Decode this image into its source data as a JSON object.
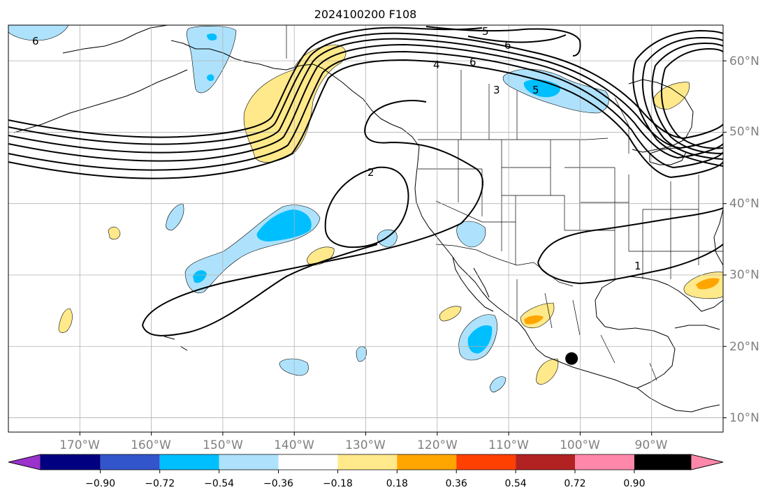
{
  "title": "2024100200 F108",
  "map": {
    "projection": "PlateCarree",
    "lon_range": [
      -180,
      -80
    ],
    "lat_range": [
      8,
      65
    ],
    "grid": true,
    "grid_lons": [
      -170,
      -160,
      -150,
      -140,
      -130,
      -120,
      -110,
      -100,
      -90,
      -80
    ],
    "grid_lats": [
      10,
      20,
      30,
      40,
      50,
      60
    ],
    "lon_tick_labels": [
      "170°W",
      "160°W",
      "150°W",
      "140°W",
      "130°W",
      "120°W",
      "110°W",
      "100°W",
      "90°W"
    ],
    "lat_tick_labels": [
      "10°N",
      "20°N",
      "30°N",
      "40°N",
      "50°N",
      "60°N"
    ],
    "marker": {
      "lon": -101.2,
      "lat": 18.3,
      "color": "#000000"
    }
  },
  "contour_labels": [
    "6",
    "5",
    "6",
    "4",
    "6",
    "3",
    "5",
    "2",
    "1"
  ],
  "colorbar": {
    "colors": [
      "#9933cc",
      "#000080",
      "#3355cc",
      "#00bfff",
      "#aee2fc",
      "#ffffff",
      "#ffe98a",
      "#ffa500",
      "#ff4000",
      "#b22222",
      "#ff88aa"
    ],
    "tick_labels": [
      "−0.90",
      "−0.72",
      "−0.54",
      "−0.36",
      "−0.18",
      "0.18",
      "0.36",
      "0.54",
      "0.72",
      "0.90"
    ],
    "extend": "both"
  }
}
